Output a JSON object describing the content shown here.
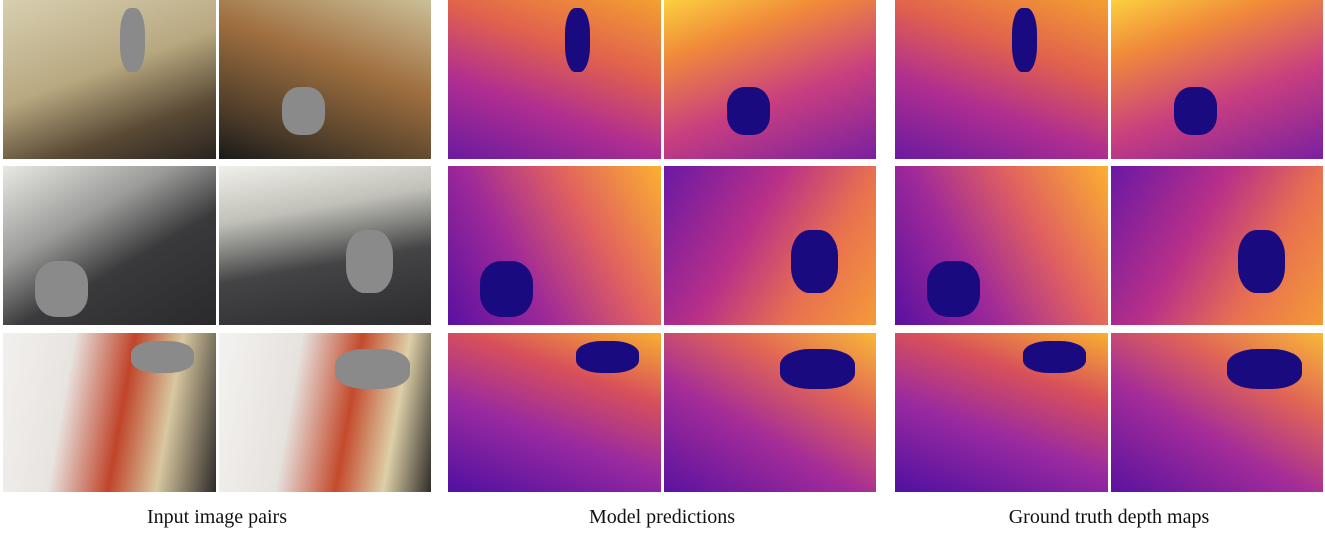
{
  "columns": [
    {
      "caption": "Input image pairs"
    },
    {
      "caption": "Model predictions"
    },
    {
      "caption": "Ground truth depth maps"
    }
  ]
}
